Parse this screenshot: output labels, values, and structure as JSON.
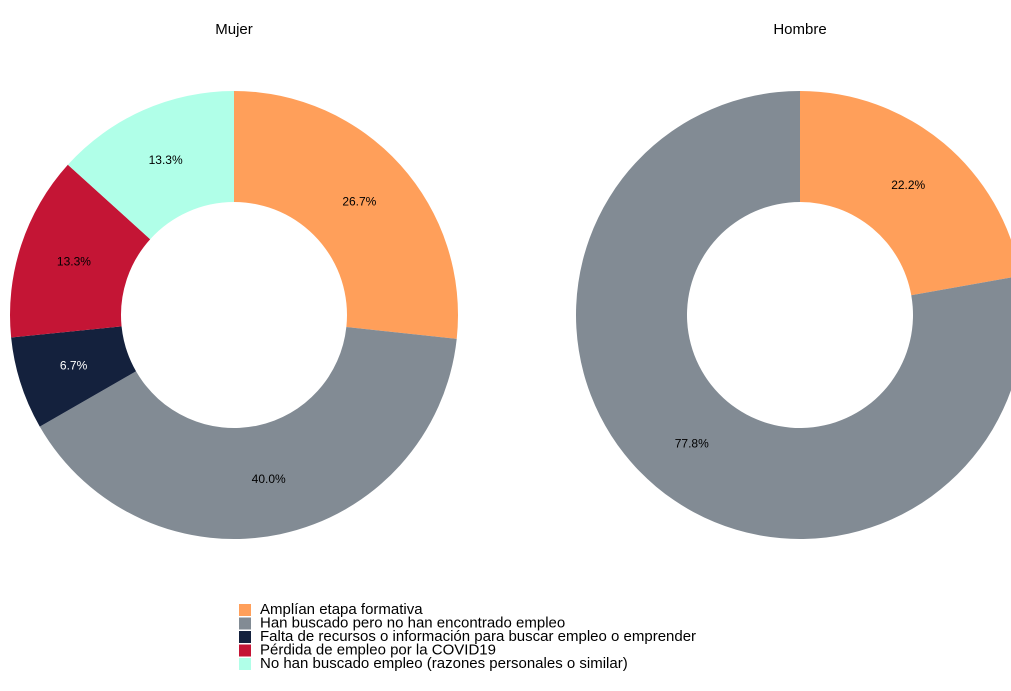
{
  "chart_data": [
    {
      "type": "pie",
      "title": "Mujer",
      "categories": [
        "Amplían etapa formativa",
        "Han buscado pero no han encontrado empleo",
        "Falta de recursos o información para buscar empleo o emprender",
        "Pérdida de empleo por la COVID19",
        "No han buscado empleo (razones personales o similar)"
      ],
      "values": [
        26.7,
        40.0,
        6.7,
        13.3,
        13.3
      ],
      "value_labels": [
        "26.7%",
        "40.0%",
        "6.7%",
        "13.3%",
        "13.3%"
      ],
      "colors": [
        "#FF9F5A",
        "#828B94",
        "#14213D",
        "#C41535",
        "#B0FFE8"
      ]
    },
    {
      "type": "pie",
      "title": "Hombre",
      "categories": [
        "Amplían etapa formativa",
        "Han buscado pero no han encontrado empleo"
      ],
      "values": [
        22.2,
        77.8
      ],
      "value_labels": [
        "22.2%",
        "77.8%"
      ],
      "colors": [
        "#FF9F5A",
        "#828B94"
      ]
    }
  ]
}
